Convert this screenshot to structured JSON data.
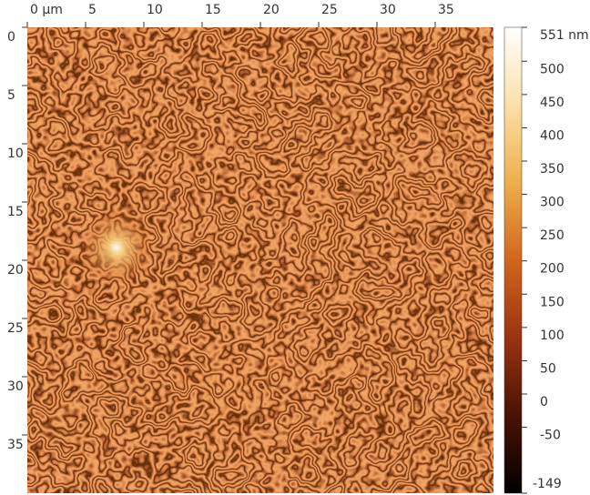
{
  "chart_data": {
    "type": "image",
    "xlim": [
      0,
      40
    ],
    "xticks": [
      {
        "value": 0,
        "label": "0 μm"
      },
      5,
      10,
      15,
      20,
      25,
      30,
      35
    ],
    "ylim": [
      0,
      40
    ],
    "yticks": [
      0,
      5,
      10,
      15,
      20,
      25,
      30,
      35
    ],
    "colorbar": {
      "lim": [
        -149,
        551
      ],
      "ticks": [
        {
          "value": 551,
          "label": "551 nm"
        },
        500,
        450,
        400,
        350,
        300,
        250,
        200,
        150,
        100,
        50,
        0,
        -50,
        -149
      ],
      "colors": [
        "#000000",
        "#4a1204",
        "#9a3312",
        "#d0661e",
        "#eeae4e",
        "#fbe0a8",
        "#ffffff"
      ]
    }
  }
}
